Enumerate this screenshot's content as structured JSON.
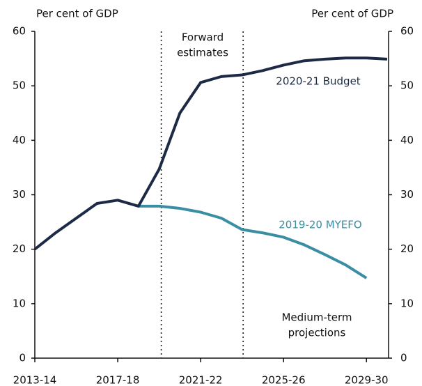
{
  "chart_data": {
    "type": "line",
    "y_label": "Per cent of GDP",
    "y2_label": "Per cent of GDP",
    "categories": [
      "2013-14",
      null,
      null,
      null,
      "2017-18",
      null,
      null,
      null,
      "2021-22",
      null,
      null,
      null,
      "2025-26",
      null,
      null,
      null,
      "2029-30",
      null
    ],
    "series": [
      {
        "name": "2020-21 Budget",
        "color": "#1c2a45",
        "values": [
          20,
          23,
          25.7,
          28.4,
          29,
          27.9,
          34.7,
          45,
          50.6,
          51.7,
          52,
          52.8,
          53.8,
          54.6,
          54.9,
          55.1,
          55.1,
          54.9
        ]
      },
      {
        "name": "2019-20 MYEFO",
        "color": "#3a8ea3",
        "values": [
          null,
          null,
          null,
          null,
          null,
          27.9,
          27.9,
          27.5,
          26.8,
          25.7,
          23.6,
          23,
          22.2,
          20.8,
          19,
          17.1,
          14.7,
          null
        ]
      }
    ],
    "annotations": [
      [
        "Forward",
        "estimates"
      ],
      [
        "Medium-term",
        "projections"
      ]
    ],
    "ylim": [
      0,
      60
    ],
    "yticks": [
      0,
      10,
      20,
      30,
      40,
      50,
      60
    ],
    "y2lim": [
      0,
      60
    ],
    "y2ticks": [
      0,
      10,
      20,
      30,
      40,
      50,
      60
    ]
  }
}
